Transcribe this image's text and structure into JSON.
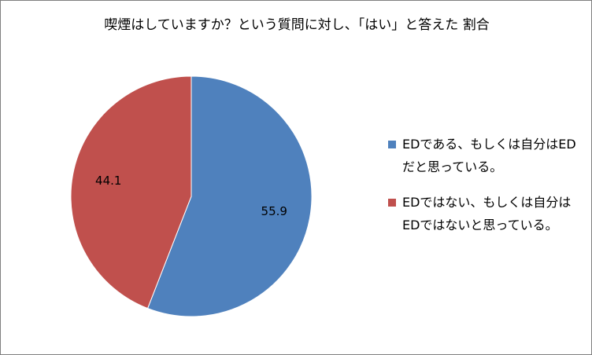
{
  "chart_data": {
    "type": "pie",
    "title": "喫煙はしていますか？という質問に対し、「はい」と答えた 割合",
    "legend_position": "right",
    "slices": [
      {
        "label": "EDである、もしくは自分はEDだと思っている。",
        "value": 55.9,
        "display": "55.9",
        "color": "#4f81bd"
      },
      {
        "label": "EDではない、もしくは自分はEDではないと思っている。",
        "value": 44.1,
        "display": "44.1",
        "color": "#c0504d"
      }
    ]
  }
}
